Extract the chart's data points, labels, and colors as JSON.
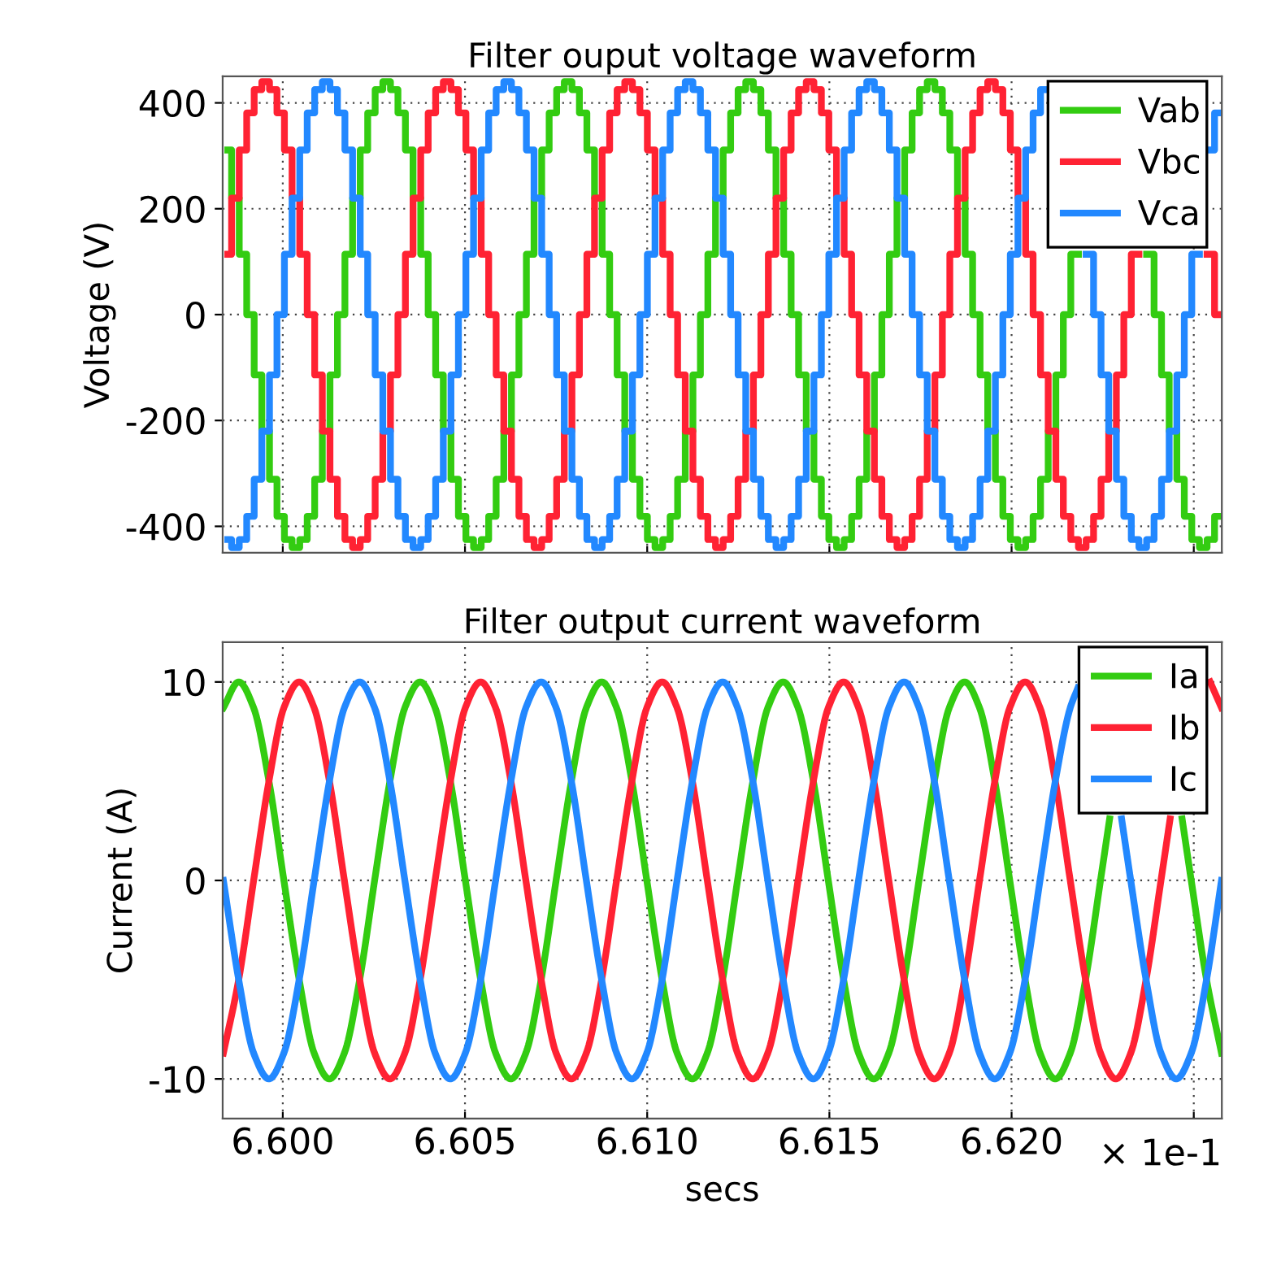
{
  "chart_data": [
    {
      "type": "step",
      "title": "Filter ouput voltage waveform",
      "ylabel": "Voltage (V)",
      "xlim": [
        6.59835,
        6.62577
      ],
      "ylim": [
        -450,
        450
      ],
      "xticks": [
        6.6,
        6.605,
        6.61,
        6.615,
        6.62,
        6.625
      ],
      "yticks": [
        -400,
        -200,
        0,
        200,
        400
      ],
      "tick_labels": "y",
      "grid": true,
      "legend": "top right",
      "line_style": "solid",
      "marker": "none",
      "x": [
        6.59849,
        6.5987,
        6.59891,
        6.59911,
        6.59932,
        6.59953,
        6.59974,
        6.59994,
        6.60015,
        6.60036,
        6.60057,
        6.60077,
        6.60098,
        6.60119,
        6.6014,
        6.6016,
        6.60181,
        6.60202,
        6.60223,
        6.60243,
        6.60264,
        6.60285,
        6.60306,
        6.60326,
        6.60347,
        6.60368,
        6.60389,
        6.60409,
        6.6043,
        6.60451,
        6.60472,
        6.60492,
        6.60513,
        6.60534,
        6.60555,
        6.60575,
        6.60596,
        6.60617,
        6.60638,
        6.60658,
        6.60679,
        6.607,
        6.60721,
        6.60741,
        6.60762,
        6.60783,
        6.60804,
        6.60824,
        6.60845,
        6.60866,
        6.60887,
        6.60907,
        6.60928,
        6.60949,
        6.6097,
        6.6099,
        6.61011,
        6.61032,
        6.61053,
        6.61073,
        6.61094,
        6.61115,
        6.61136,
        6.61156,
        6.61177,
        6.61198,
        6.61219,
        6.61239,
        6.6126,
        6.61281,
        6.61302,
        6.61322,
        6.61343,
        6.61364,
        6.61385,
        6.61405,
        6.61426,
        6.61447,
        6.61468,
        6.61488,
        6.61509,
        6.6153,
        6.61551,
        6.61571,
        6.61592,
        6.61613,
        6.61634,
        6.61654,
        6.61675,
        6.61696,
        6.61717,
        6.61737,
        6.61758,
        6.61779,
        6.618,
        6.6182,
        6.61841,
        6.61862,
        6.61883,
        6.61903,
        6.61924,
        6.61945,
        6.61966,
        6.61986,
        6.62007,
        6.62028,
        6.62049,
        6.62069,
        6.6209,
        6.62111,
        6.62132,
        6.62152,
        6.62173,
        6.62194,
        6.62215,
        6.62235,
        6.62256,
        6.62277,
        6.62298,
        6.62318,
        6.62339,
        6.6236,
        6.62381,
        6.62401,
        6.62422,
        6.62443,
        6.62464,
        6.62484,
        6.62505,
        6.62526,
        6.62547,
        6.62567
      ],
      "series": [
        {
          "name": "Vab",
          "color": "#33cc11",
          "values": [
            311,
            220,
            114,
            0,
            -114,
            -220,
            -311,
            -381,
            -425,
            -440,
            -425,
            -381,
            -311,
            -220,
            -114,
            0,
            114,
            220,
            311,
            381,
            425,
            440,
            425,
            381,
            311,
            220,
            114,
            0,
            -114,
            -220,
            -311,
            -381,
            -425,
            -440,
            -425,
            -381,
            -311,
            -220,
            -114,
            0,
            114,
            220,
            311,
            381,
            425,
            440,
            425,
            381,
            311,
            220,
            114,
            0,
            -114,
            -220,
            -311,
            -381,
            -425,
            -440,
            -425,
            -381,
            -311,
            -220,
            -114,
            0,
            114,
            220,
            311,
            381,
            425,
            440,
            425,
            381,
            311,
            220,
            114,
            0,
            -114,
            -220,
            -311,
            -381,
            -425,
            -440,
            -425,
            -381,
            -311,
            -220,
            -114,
            0,
            114,
            220,
            311,
            381,
            425,
            440,
            425,
            381,
            311,
            220,
            114,
            0,
            -114,
            -220,
            -311,
            -381,
            -425,
            -440,
            -425,
            -381,
            -311,
            -220,
            -114,
            0,
            114,
            null,
            null,
            null,
            null,
            null,
            null,
            null,
            null,
            null,
            114,
            0,
            -114,
            -220,
            -311,
            -381,
            -425,
            -440,
            -425,
            -381
          ]
        },
        {
          "name": "Vbc",
          "color": "#ff2233",
          "values": [
            114,
            220,
            311,
            381,
            425,
            440,
            425,
            381,
            311,
            220,
            114,
            0,
            -114,
            -220,
            -311,
            -381,
            -425,
            -440,
            -425,
            -381,
            -311,
            -220,
            -114,
            0,
            114,
            220,
            311,
            381,
            425,
            440,
            425,
            381,
            311,
            220,
            114,
            0,
            -114,
            -220,
            -311,
            -381,
            -425,
            -440,
            -425,
            -381,
            -311,
            -220,
            -114,
            0,
            114,
            220,
            311,
            381,
            425,
            440,
            425,
            381,
            311,
            220,
            114,
            0,
            -114,
            -220,
            -311,
            -381,
            -425,
            -440,
            -425,
            -381,
            -311,
            -220,
            -114,
            0,
            114,
            220,
            311,
            381,
            425,
            440,
            425,
            381,
            311,
            220,
            114,
            0,
            -114,
            -220,
            -311,
            -381,
            -425,
            -440,
            -425,
            -381,
            -311,
            -220,
            -114,
            0,
            114,
            220,
            311,
            381,
            425,
            440,
            425,
            381,
            311,
            220,
            114,
            0,
            -114,
            -220,
            -311,
            -381,
            -425,
            -440,
            -425,
            -381,
            -311,
            -220,
            -114,
            0,
            114,
            null,
            null,
            null,
            null,
            null,
            null,
            null,
            null,
            null,
            114,
            0
          ]
        },
        {
          "name": "Vca",
          "color": "#2288ff",
          "values": [
            -425,
            -440,
            -425,
            -381,
            -311,
            -220,
            -114,
            0,
            114,
            220,
            311,
            381,
            425,
            440,
            425,
            381,
            311,
            220,
            114,
            0,
            -114,
            -220,
            -311,
            -381,
            -425,
            -440,
            -425,
            -381,
            -311,
            -220,
            -114,
            0,
            114,
            220,
            311,
            381,
            425,
            440,
            425,
            381,
            311,
            220,
            114,
            0,
            -114,
            -220,
            -311,
            -381,
            -425,
            -440,
            -425,
            -381,
            -311,
            -220,
            -114,
            0,
            114,
            220,
            311,
            381,
            425,
            440,
            425,
            381,
            311,
            220,
            114,
            0,
            -114,
            -220,
            -311,
            -381,
            -425,
            -440,
            -425,
            -381,
            -311,
            -220,
            -114,
            0,
            114,
            220,
            311,
            381,
            425,
            440,
            425,
            381,
            311,
            220,
            114,
            0,
            -114,
            -220,
            -311,
            -381,
            -425,
            -440,
            -425,
            -381,
            -311,
            -220,
            -114,
            0,
            114,
            220,
            311,
            381,
            425,
            null,
            null,
            null,
            null,
            null,
            114,
            0,
            -114,
            -220,
            -311,
            -381,
            -425,
            -440,
            -425,
            -381,
            -311,
            -220,
            -114,
            0,
            114,
            null,
            311,
            381
          ]
        }
      ]
    },
    {
      "type": "line",
      "title": "Filter output current waveform",
      "ylabel": "Current (A)",
      "xlabel": "secs",
      "xlim": [
        6.59835,
        6.62577
      ],
      "ylim": [
        -12,
        12
      ],
      "xticks": [
        {
          "value": 6.6,
          "label": "6.600"
        },
        {
          "value": 6.605,
          "label": "6.605"
        },
        {
          "value": 6.61,
          "label": "6.610"
        },
        {
          "value": 6.615,
          "label": "6.615"
        },
        {
          "value": 6.62,
          "label": "6.620"
        },
        {
          "value": 6.625,
          "label": null
        }
      ],
      "yticks": [
        -10,
        0,
        10
      ],
      "grid": true,
      "legend": "top right",
      "line_style": "solid",
      "marker": "none",
      "annotations": [
        "× 1e-1"
      ],
      "series": [
        {
          "name": "Ia",
          "color": "#33cc11",
          "x": [
            6.59837,
            6.59879,
            6.5992,
            6.59962,
            6.60003,
            6.60045,
            6.60086,
            6.60128,
            6.60169,
            6.60211,
            6.60252,
            6.60294,
            6.60335,
            6.60377,
            6.60418,
            6.6046,
            6.60501,
            6.60543,
            6.60584,
            6.60626,
            6.60667,
            6.60709,
            6.6075,
            6.60792,
            6.60833,
            6.60875,
            6.60916,
            6.60958,
            6.60999,
            6.61041,
            6.61082,
            6.61124,
            6.61165,
            6.61207,
            6.61248,
            6.6129,
            6.61331,
            6.61373,
            6.61414,
            6.61456,
            6.61497,
            6.61539,
            6.6158,
            6.61622,
            6.61663,
            6.61705,
            6.61746,
            6.61788,
            6.61829,
            6.61871,
            6.61912,
            6.61954,
            6.61995,
            6.62037,
            6.62078,
            6.6212,
            6.62161,
            6.62203,
            6.62244,
            6.62269,
            6.6237,
            6.62468,
            6.62493,
            6.62535,
            6.62576
          ],
          "values": [
            8.7,
            10,
            8.7,
            5,
            0,
            -5,
            -8.7,
            -10,
            -8.7,
            -5,
            0,
            5,
            8.7,
            10,
            8.7,
            5,
            0,
            -5,
            -8.7,
            -10,
            -8.7,
            -5,
            0,
            5,
            8.7,
            10,
            8.7,
            5,
            0,
            -5,
            -8.7,
            -10,
            -8.7,
            -5,
            0,
            5,
            8.7,
            10,
            8.7,
            5,
            0,
            -5,
            -8.7,
            -10,
            -8.7,
            -5,
            0,
            5,
            8.7,
            10,
            8.7,
            5,
            0,
            -5,
            -8.7,
            -10,
            -8.7,
            -5,
            0,
            3.1,
            null,
            3.1,
            0,
            -5,
            -8.7
          ]
        },
        {
          "name": "Ib",
          "color": "#ff2233",
          "x": [
            6.59837,
            6.59879,
            6.5992,
            6.59962,
            6.60003,
            6.60045,
            6.60086,
            6.60128,
            6.60169,
            6.60211,
            6.60252,
            6.60294,
            6.60335,
            6.60377,
            6.60418,
            6.6046,
            6.60501,
            6.60543,
            6.60584,
            6.60626,
            6.60667,
            6.60709,
            6.6075,
            6.60792,
            6.60833,
            6.60875,
            6.60916,
            6.60958,
            6.60999,
            6.61041,
            6.61082,
            6.61124,
            6.61165,
            6.61207,
            6.61248,
            6.6129,
            6.61331,
            6.61373,
            6.61414,
            6.61456,
            6.61497,
            6.61539,
            6.6158,
            6.61622,
            6.61663,
            6.61705,
            6.61746,
            6.61788,
            6.61829,
            6.61871,
            6.61912,
            6.61954,
            6.61995,
            6.62037,
            6.62078,
            6.6212,
            6.62161,
            6.62203,
            6.62244,
            6.62286,
            6.62327,
            6.62369,
            6.6241,
            6.62435,
            6.6249,
            6.62545,
            6.62576
          ],
          "values": [
            -8.7,
            -5,
            0,
            5,
            8.7,
            10,
            8.7,
            5,
            0,
            -5,
            -8.7,
            -10,
            -8.7,
            -5,
            0,
            5,
            8.7,
            10,
            8.7,
            5,
            0,
            -5,
            -8.7,
            -10,
            -8.7,
            -5,
            0,
            5,
            8.7,
            10,
            8.7,
            5,
            0,
            -5,
            -8.7,
            -10,
            -8.7,
            -5,
            0,
            5,
            8.7,
            10,
            8.7,
            5,
            0,
            -5,
            -8.7,
            -10,
            -8.7,
            -5,
            0,
            5,
            8.7,
            10,
            8.7,
            5,
            0,
            -5,
            -8.7,
            -10,
            -8.7,
            -5,
            0,
            3.1,
            null,
            10,
            8.7
          ]
        },
        {
          "name": "Ic",
          "color": "#2288ff",
          "x": [
            6.59837,
            6.59879,
            6.5992,
            6.59962,
            6.60003,
            6.60045,
            6.60086,
            6.60128,
            6.60169,
            6.60211,
            6.60252,
            6.60294,
            6.60335,
            6.60377,
            6.60418,
            6.6046,
            6.60501,
            6.60543,
            6.60584,
            6.60626,
            6.60667,
            6.60709,
            6.6075,
            6.60792,
            6.60833,
            6.60875,
            6.60916,
            6.60958,
            6.60999,
            6.61041,
            6.61082,
            6.61124,
            6.61165,
            6.61207,
            6.61248,
            6.6129,
            6.61331,
            6.61373,
            6.61414,
            6.61456,
            6.61497,
            6.61539,
            6.6158,
            6.61622,
            6.61663,
            6.61705,
            6.61746,
            6.61788,
            6.61829,
            6.61871,
            6.61912,
            6.61954,
            6.61995,
            6.62037,
            6.62078,
            6.6212,
            6.62161,
            6.62182,
            6.6224,
            6.62302,
            6.62327,
            6.62369,
            6.6241,
            6.62452,
            6.62493,
            6.62535,
            6.62576
          ],
          "values": [
            0,
            -5,
            -8.7,
            -10,
            -8.7,
            -5,
            0,
            5,
            8.7,
            10,
            8.7,
            5,
            0,
            -5,
            -8.7,
            -10,
            -8.7,
            -5,
            0,
            5,
            8.7,
            10,
            8.7,
            5,
            0,
            -5,
            -8.7,
            -10,
            -8.7,
            -5,
            0,
            5,
            8.7,
            10,
            8.7,
            5,
            0,
            -5,
            -8.7,
            -10,
            -8.7,
            -5,
            0,
            5,
            8.7,
            10,
            8.7,
            5,
            0,
            -5,
            -8.7,
            -10,
            -8.7,
            -5,
            0,
            5,
            8.7,
            9.7,
            null,
            3.1,
            0,
            -5,
            -8.7,
            -10,
            -8.7,
            -5,
            0
          ]
        }
      ]
    }
  ]
}
